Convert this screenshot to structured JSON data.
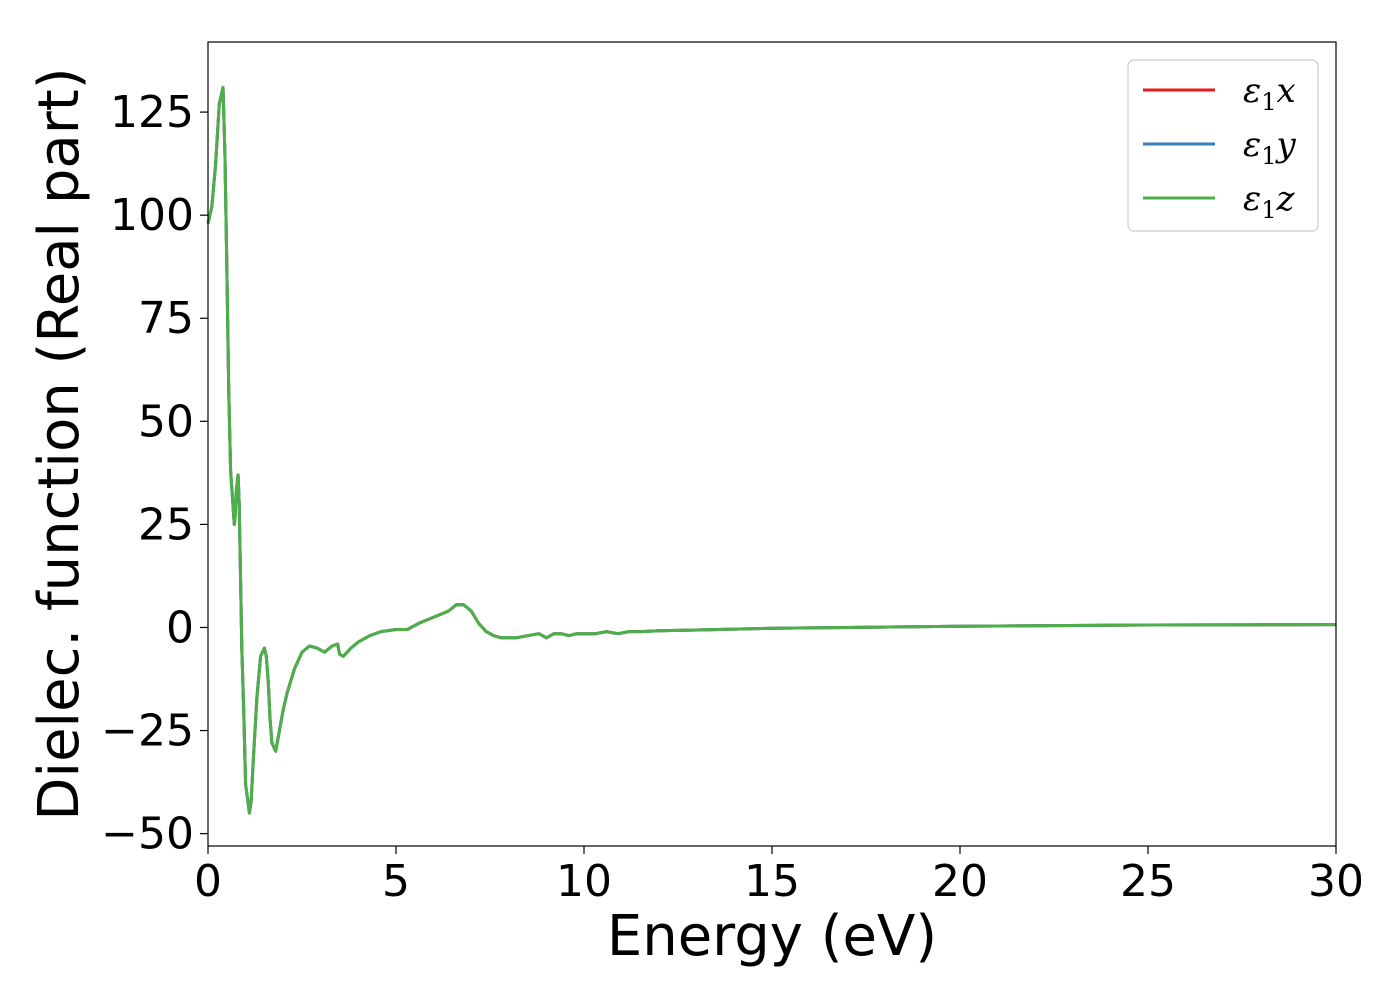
{
  "chart_data": {
    "type": "line",
    "title": "",
    "xlabel": "Energy (eV)",
    "ylabel": "Dielec. function (Real part)",
    "xlim": [
      0,
      30
    ],
    "ylim": [
      -53,
      142
    ],
    "xticks": [
      0,
      5,
      10,
      15,
      20,
      25,
      30
    ],
    "yticks": [
      -50,
      -25,
      0,
      25,
      50,
      75,
      100,
      125
    ],
    "grid": false,
    "legend_position": "top-right",
    "series": [
      {
        "name": "ε1x",
        "name_base": "ε",
        "name_sub": "1",
        "name_suffix": "x",
        "color": "#e41a1c",
        "x": [
          0.0,
          0.1,
          0.2,
          0.3,
          0.4,
          0.45,
          0.5,
          0.55,
          0.6,
          0.7,
          0.72,
          0.75,
          0.8,
          0.83,
          0.87,
          0.9,
          0.95,
          1.0,
          1.1,
          1.15,
          1.2,
          1.3,
          1.4,
          1.5,
          1.55,
          1.6,
          1.65,
          1.7,
          1.8,
          1.9,
          2.0,
          2.1,
          2.3,
          2.5,
          2.7,
          2.9,
          3.1,
          3.3,
          3.45,
          3.5,
          3.6,
          3.8,
          4.0,
          4.3,
          4.6,
          5.0,
          5.3,
          5.6,
          6.0,
          6.4,
          6.6,
          6.8,
          7.0,
          7.2,
          7.4,
          7.6,
          7.8,
          8.0,
          8.2,
          8.5,
          8.8,
          9.0,
          9.2,
          9.4,
          9.6,
          9.8,
          10.0,
          10.3,
          10.6,
          10.9,
          11.2,
          11.5,
          12.0,
          13.0,
          14.0,
          15.0,
          17.0,
          20.0,
          25.0,
          30.0
        ],
        "y": [
          98,
          102,
          112,
          127,
          131,
          115,
          88,
          58,
          38,
          25,
          27,
          33,
          37,
          30,
          10,
          -5,
          -20,
          -38,
          -45,
          -42,
          -33,
          -17,
          -7,
          -5,
          -7,
          -13,
          -22,
          -28,
          -30,
          -25,
          -20,
          -16,
          -10,
          -6,
          -4.5,
          -5,
          -6,
          -4.5,
          -4,
          -6.5,
          -7,
          -5,
          -3.5,
          -2,
          -1,
          -0.5,
          -0.5,
          1,
          2.5,
          4,
          5.5,
          5.5,
          4,
          1,
          -1,
          -2,
          -2.5,
          -2.5,
          -2.5,
          -2,
          -1.5,
          -2.5,
          -1.5,
          -1.5,
          -2,
          -1.5,
          -1.5,
          -1.5,
          -1,
          -1.5,
          -1,
          -1,
          -0.8,
          -0.6,
          -0.4,
          -0.2,
          0,
          0.3,
          0.6,
          0.7
        ]
      },
      {
        "name": "ε1y",
        "name_base": "ε",
        "name_sub": "1",
        "name_suffix": "y",
        "color": "#377eb8",
        "x": [
          0.0,
          0.1,
          0.2,
          0.3,
          0.4,
          0.45,
          0.5,
          0.55,
          0.6,
          0.7,
          0.72,
          0.75,
          0.8,
          0.83,
          0.87,
          0.9,
          0.95,
          1.0,
          1.1,
          1.15,
          1.2,
          1.3,
          1.4,
          1.5,
          1.55,
          1.6,
          1.65,
          1.7,
          1.8,
          1.9,
          2.0,
          2.1,
          2.3,
          2.5,
          2.7,
          2.9,
          3.1,
          3.3,
          3.45,
          3.5,
          3.6,
          3.8,
          4.0,
          4.3,
          4.6,
          5.0,
          5.3,
          5.6,
          6.0,
          6.4,
          6.6,
          6.8,
          7.0,
          7.2,
          7.4,
          7.6,
          7.8,
          8.0,
          8.2,
          8.5,
          8.8,
          9.0,
          9.2,
          9.4,
          9.6,
          9.8,
          10.0,
          10.3,
          10.6,
          10.9,
          11.2,
          11.5,
          12.0,
          13.0,
          14.0,
          15.0,
          17.0,
          20.0,
          25.0,
          30.0
        ],
        "y": [
          98,
          102,
          112,
          127,
          131,
          115,
          88,
          58,
          38,
          25,
          27,
          33,
          37,
          30,
          10,
          -5,
          -20,
          -38,
          -45,
          -42,
          -33,
          -17,
          -7,
          -5,
          -7,
          -13,
          -22,
          -28,
          -30,
          -25,
          -20,
          -16,
          -10,
          -6,
          -4.5,
          -5,
          -6,
          -4.5,
          -4,
          -6.5,
          -7,
          -5,
          -3.5,
          -2,
          -1,
          -0.5,
          -0.5,
          1,
          2.5,
          4,
          5.5,
          5.5,
          4,
          1,
          -1,
          -2,
          -2.5,
          -2.5,
          -2.5,
          -2,
          -1.5,
          -2.5,
          -1.5,
          -1.5,
          -2,
          -1.5,
          -1.5,
          -1.5,
          -1,
          -1.5,
          -1,
          -1,
          -0.8,
          -0.6,
          -0.4,
          -0.2,
          0,
          0.3,
          0.6,
          0.7
        ]
      },
      {
        "name": "ε1z",
        "name_base": "ε",
        "name_sub": "1",
        "name_suffix": "z",
        "color": "#4daf4a",
        "x": [
          0.0,
          0.1,
          0.2,
          0.3,
          0.4,
          0.45,
          0.5,
          0.55,
          0.6,
          0.7,
          0.72,
          0.75,
          0.8,
          0.83,
          0.87,
          0.9,
          0.95,
          1.0,
          1.1,
          1.15,
          1.2,
          1.3,
          1.4,
          1.5,
          1.55,
          1.6,
          1.65,
          1.7,
          1.8,
          1.9,
          2.0,
          2.1,
          2.3,
          2.5,
          2.7,
          2.9,
          3.1,
          3.3,
          3.45,
          3.5,
          3.6,
          3.8,
          4.0,
          4.3,
          4.6,
          5.0,
          5.3,
          5.6,
          6.0,
          6.4,
          6.6,
          6.8,
          7.0,
          7.2,
          7.4,
          7.6,
          7.8,
          8.0,
          8.2,
          8.5,
          8.8,
          9.0,
          9.2,
          9.4,
          9.6,
          9.8,
          10.0,
          10.3,
          10.6,
          10.9,
          11.2,
          11.5,
          12.0,
          13.0,
          14.0,
          15.0,
          17.0,
          20.0,
          25.0,
          30.0
        ],
        "y": [
          98,
          102,
          112,
          127,
          131,
          115,
          88,
          58,
          38,
          25,
          27,
          33,
          37,
          30,
          10,
          -5,
          -20,
          -38,
          -45,
          -42,
          -33,
          -17,
          -7,
          -5,
          -7,
          -13,
          -22,
          -28,
          -30,
          -25,
          -20,
          -16,
          -10,
          -6,
          -4.5,
          -5,
          -6,
          -4.5,
          -4,
          -6.5,
          -7,
          -5,
          -3.5,
          -2,
          -1,
          -0.5,
          -0.5,
          1,
          2.5,
          4,
          5.5,
          5.5,
          4,
          1,
          -1,
          -2,
          -2.5,
          -2.5,
          -2.5,
          -2,
          -1.5,
          -2.5,
          -1.5,
          -1.5,
          -2,
          -1.5,
          -1.5,
          -1.5,
          -1,
          -1.5,
          -1,
          -1,
          -0.8,
          -0.6,
          -0.4,
          -0.2,
          0,
          0.3,
          0.6,
          0.7
        ]
      }
    ]
  }
}
